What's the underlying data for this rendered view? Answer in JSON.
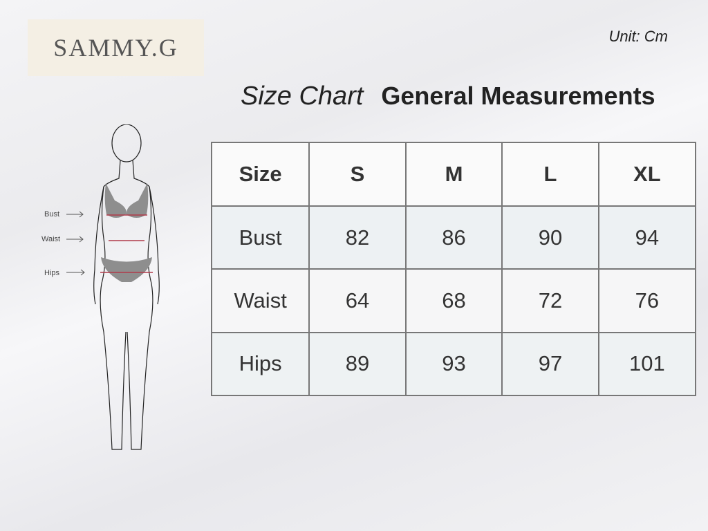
{
  "brand": "SAMMY.G",
  "unit": "Unit: Cm",
  "title": {
    "prefix": "Size Chart",
    "main": "General Measurements"
  },
  "figure": {
    "labels": [
      "Bust",
      "Waist",
      "Hips"
    ]
  },
  "table": {
    "headers": [
      "Size",
      "S",
      "M",
      "L",
      "XL"
    ],
    "rows": [
      [
        "Bust",
        "82",
        "86",
        "90",
        "94"
      ],
      [
        "Waist",
        "64",
        "68",
        "72",
        "76"
      ],
      [
        "Hips",
        "89",
        "93",
        "97",
        "101"
      ]
    ]
  },
  "colors": {
    "measure_line": "#b03a4a",
    "garment": "#8e8e8e",
    "logo_bg": "#f4efe4"
  }
}
